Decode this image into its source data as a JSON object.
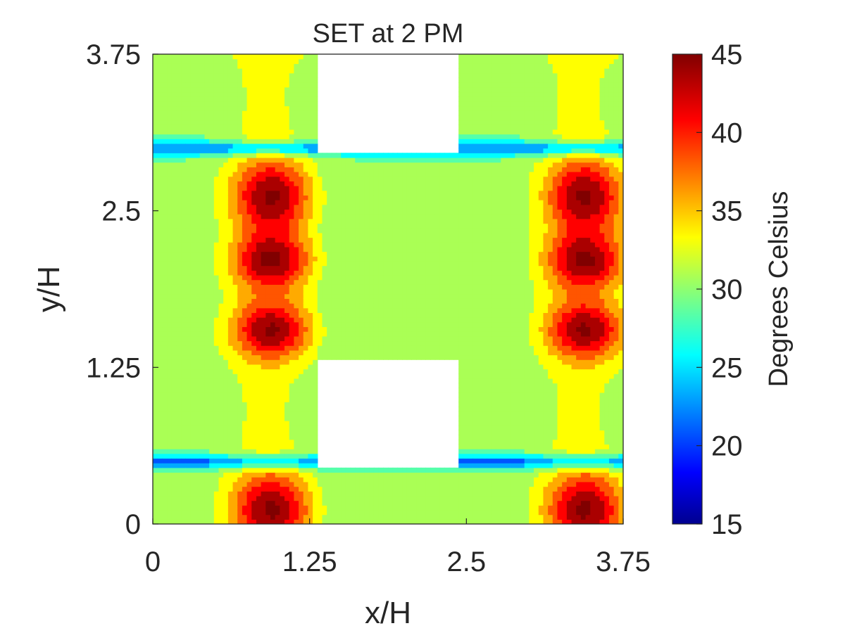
{
  "chart_data": {
    "type": "heatmap",
    "title": "SET at 2 PM",
    "xlabel": "x/H",
    "ylabel": "y/H",
    "xlim": [
      0,
      3.75
    ],
    "ylim": [
      0,
      3.75
    ],
    "xticks": [
      "0",
      "1.25",
      "2.5",
      "3.75"
    ],
    "yticks": [
      "0",
      "1.25",
      "2.5",
      "3.75"
    ],
    "colorbar": {
      "label": "Degrees Celsius",
      "range": [
        15,
        45
      ],
      "ticks": [
        "15",
        "20",
        "25",
        "30",
        "35",
        "40",
        "45"
      ],
      "colormap": "jet"
    },
    "domain": {
      "period": 2.5,
      "building_x": [
        1.3,
        2.45
      ],
      "building_y": [
        0.45,
        1.3
      ],
      "canyon_x": [
        0.45,
        1.3
      ],
      "canyon_y": [
        1.3,
        2.5
      ]
    },
    "field": {
      "street_base": 30.5,
      "hotspots": [
        {
          "x": 0.95,
          "y": 0.12,
          "value": 43,
          "sx": 0.22,
          "sy": 0.2
        },
        {
          "x": 0.95,
          "y": 1.55,
          "value": 43,
          "sx": 0.22,
          "sy": 0.16
        },
        {
          "x": 0.95,
          "y": 2.1,
          "value": 43,
          "sx": 0.22,
          "sy": 0.16
        }
      ],
      "cool_bands": [
        {
          "y": 0.5,
          "x_from": 0.45,
          "x_to": 2.5,
          "value": 20
        }
      ]
    }
  }
}
